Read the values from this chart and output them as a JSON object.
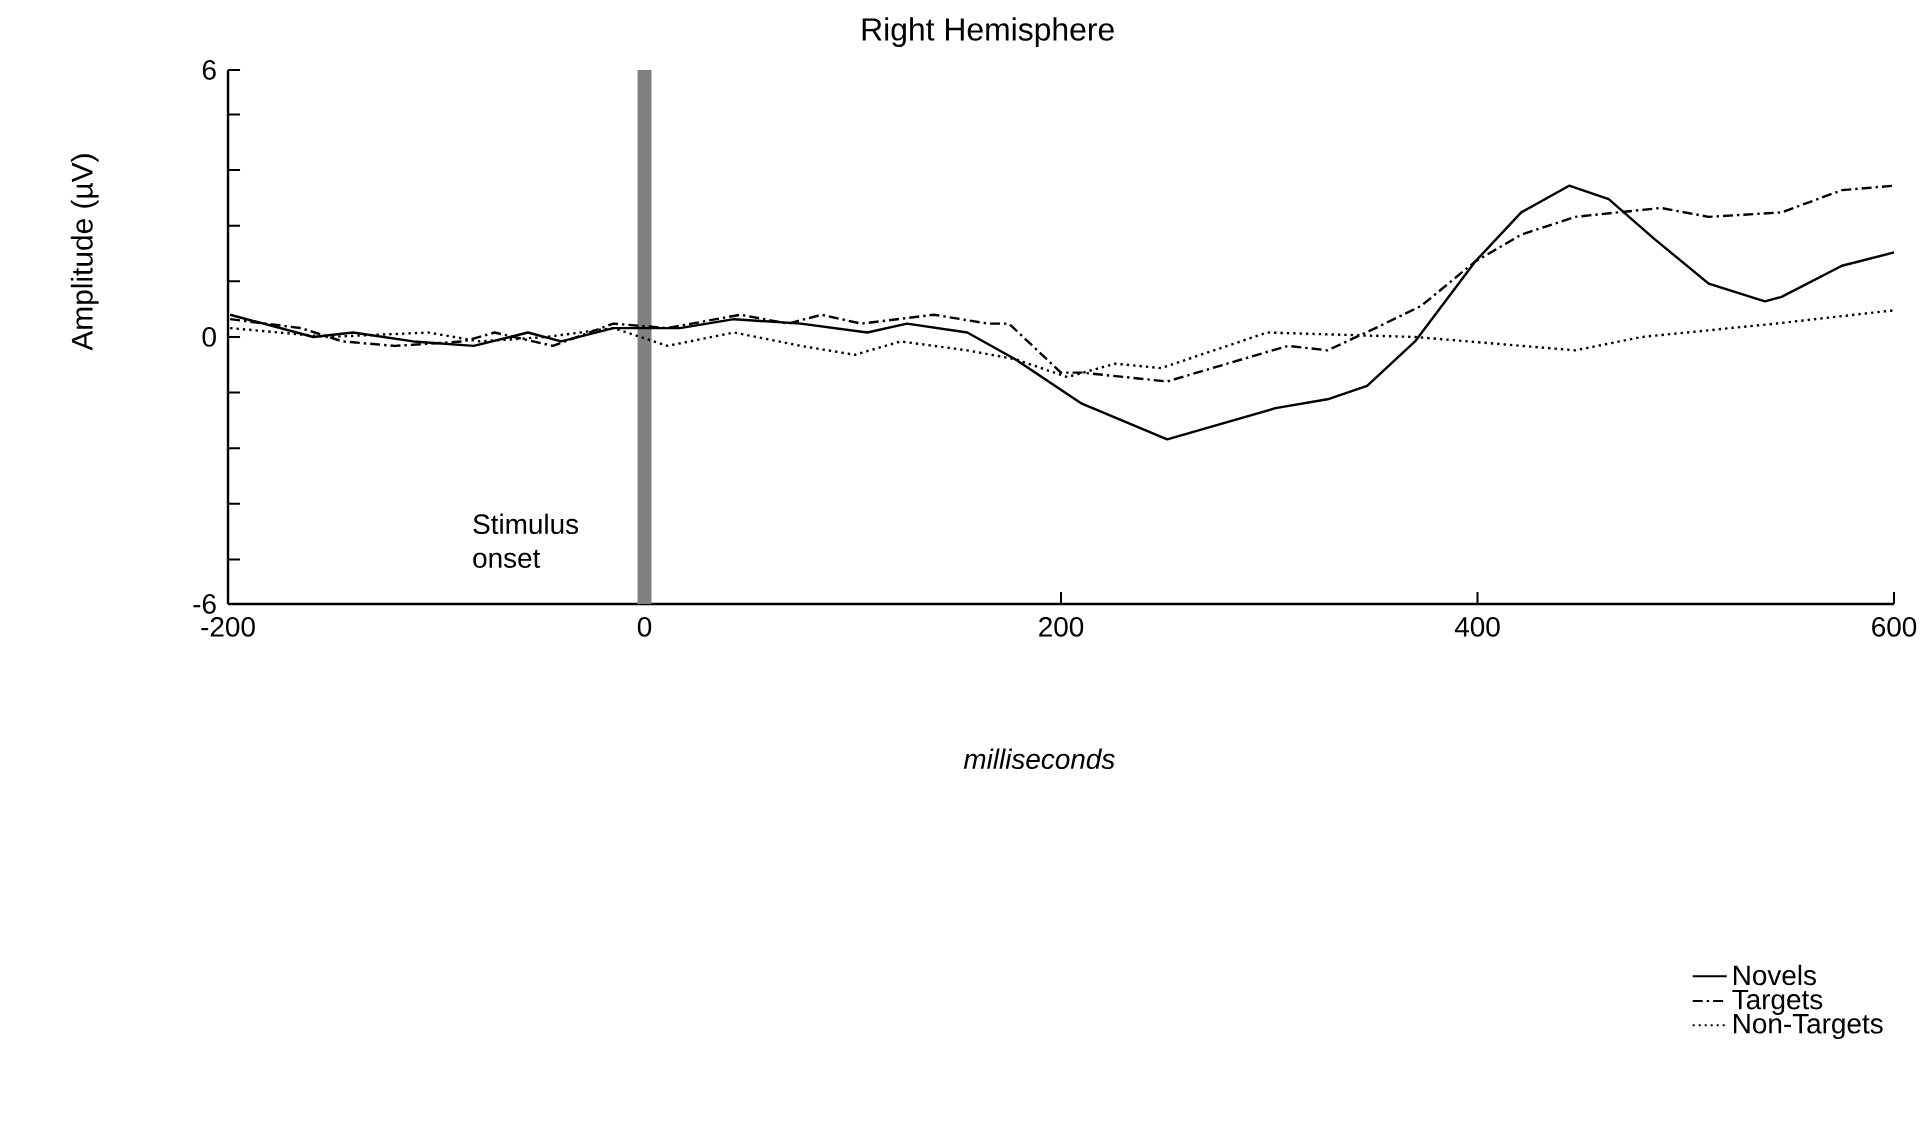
{
  "chart_data": {
    "type": "line",
    "title": "Right Hemisphere",
    "xlabel": "*milliseconds*",
    "ylabel": "Amplitude (µV)",
    "xlim": [
      -200,
      600
    ],
    "xticks": [
      -200,
      0,
      200,
      400,
      600
    ],
    "ylim": [
      -6,
      6
    ],
    "yticks": [
      -6,
      {
        "value": -5,
        "label": null
      },
      {
        "value": -3.75,
        "label": null
      },
      {
        "value": -2.5,
        "label": null
      },
      {
        "value": -1.25,
        "label": null
      },
      0,
      {
        "value": 1.25,
        "label": null
      },
      {
        "value": 2.5,
        "label": null
      },
      {
        "value": 3.75,
        "label": null
      },
      {
        "value": 5,
        "label": null
      },
      6
    ],
    "series": [
      {
        "name": "Novels",
        "color": "#000000",
        "line_style": "solid",
        "x": [
          -199,
          -159,
          -140,
          -111,
          -82,
          -56,
          -40,
          -15,
          17,
          43,
          75,
          107,
          126,
          155,
          178,
          210,
          251,
          303,
          328,
          347,
          370,
          399,
          421,
          444,
          463,
          485,
          511,
          538,
          546,
          575,
          600
        ],
        "values": [
          0.5,
          0.0,
          0.1,
          -0.1,
          -0.2,
          0.1,
          -0.1,
          0.2,
          0.2,
          0.4,
          0.3,
          0.1,
          0.3,
          0.1,
          -0.5,
          -1.5,
          -2.3,
          -1.6,
          -1.4,
          -1.1,
          -0.1,
          1.7,
          2.8,
          3.4,
          3.1,
          2.2,
          1.2,
          0.8,
          0.9,
          1.6,
          1.9
        ]
      },
      {
        "name": "Targets",
        "color": "#000000",
        "line_style": "dashed",
        "x": [
          -199,
          -165,
          -145,
          -120,
          -87,
          -72,
          -44,
          -15,
          11,
          46,
          69,
          85,
          104,
          139,
          165,
          175,
          200,
          210,
          251,
          287,
          309,
          328,
          351,
          373,
          399,
          421,
          447,
          488,
          511,
          546,
          575,
          600
        ],
        "values": [
          0.4,
          0.2,
          -0.1,
          -0.2,
          -0.1,
          0.1,
          -0.2,
          0.3,
          0.2,
          0.5,
          0.3,
          0.5,
          0.3,
          0.5,
          0.3,
          0.3,
          -0.8,
          -0.8,
          -1.0,
          -0.5,
          -0.2,
          -0.3,
          0.2,
          0.7,
          1.7,
          2.3,
          2.7,
          2.9,
          2.7,
          2.8,
          3.3,
          3.4
        ]
      },
      {
        "name": "Non-Targets",
        "color": "#000000",
        "line_style": "dotted",
        "x": [
          -199,
          -152,
          -104,
          -79,
          -47,
          -15,
          11,
          43,
          75,
          101,
          123,
          155,
          178,
          203,
          226,
          248,
          299,
          370,
          447,
          479,
          543,
          600
        ],
        "values": [
          0.2,
          0.0,
          0.1,
          -0.1,
          0.0,
          0.2,
          -0.2,
          0.1,
          -0.2,
          -0.4,
          -0.1,
          -0.3,
          -0.5,
          -0.9,
          -0.6,
          -0.7,
          0.1,
          0.0,
          -0.3,
          0.0,
          0.3,
          0.6
        ]
      }
    ],
    "ref_lines": [
      {
        "axis": "x",
        "value": 0,
        "label": "Stimulus onset",
        "color": "#808080"
      }
    ],
    "grid": false,
    "legend": "bottom right",
    "marker": "none"
  }
}
